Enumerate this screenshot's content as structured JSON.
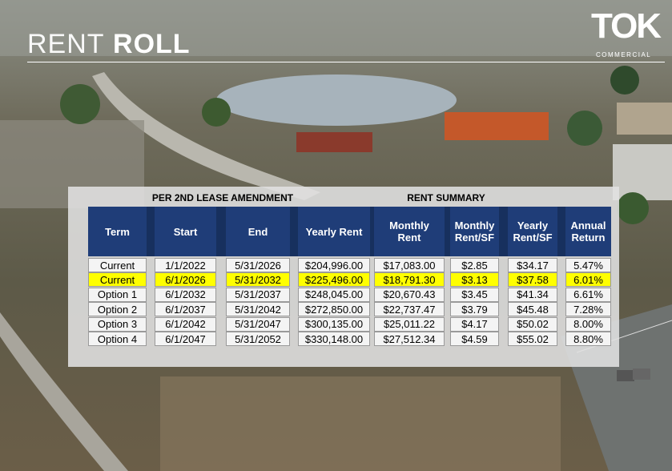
{
  "header": {
    "title_light": "RENT",
    "title_bold": "ROLL",
    "logo": "TOK",
    "logo_sub": "COMMERCIAL"
  },
  "sections": [
    "PER 2ND LEASE AMENDMENT",
    "RENT SUMMARY"
  ],
  "table": {
    "columns": [
      "Term",
      "Start",
      "End",
      "Yearly Rent",
      "Monthly Rent",
      "Monthly Rent/SF",
      "Yearly Rent/SF",
      "Annual Return"
    ],
    "rows": [
      [
        "Current",
        "1/1/2022",
        "5/31/2026",
        "$204,996.00",
        "$17,083.00",
        "$2.85",
        "$34.17",
        "5.47%"
      ],
      [
        "Current",
        "6/1/2026",
        "5/31/2032",
        "$225,496.00",
        "$18,791.30",
        "$3.13",
        "$37.58",
        "6.01%"
      ],
      [
        "Option 1",
        "6/1/2032",
        "5/31/2037",
        "$248,045.00",
        "$20,670.43",
        "$3.45",
        "$41.34",
        "6.61%"
      ],
      [
        "Option 2",
        "6/1/2037",
        "5/31/2042",
        "$272,850.00",
        "$22,737.47",
        "$3.79",
        "$45.48",
        "7.28%"
      ],
      [
        "Option 3",
        "6/1/2042",
        "5/31/2047",
        "$300,135.00",
        "$25,011.22",
        "$4.17",
        "$50.02",
        "8.00%"
      ],
      [
        "Option 4",
        "6/1/2047",
        "5/31/2052",
        "$330,148.00",
        "$27,512.34",
        "$4.59",
        "$55.02",
        "8.80%"
      ]
    ]
  }
}
